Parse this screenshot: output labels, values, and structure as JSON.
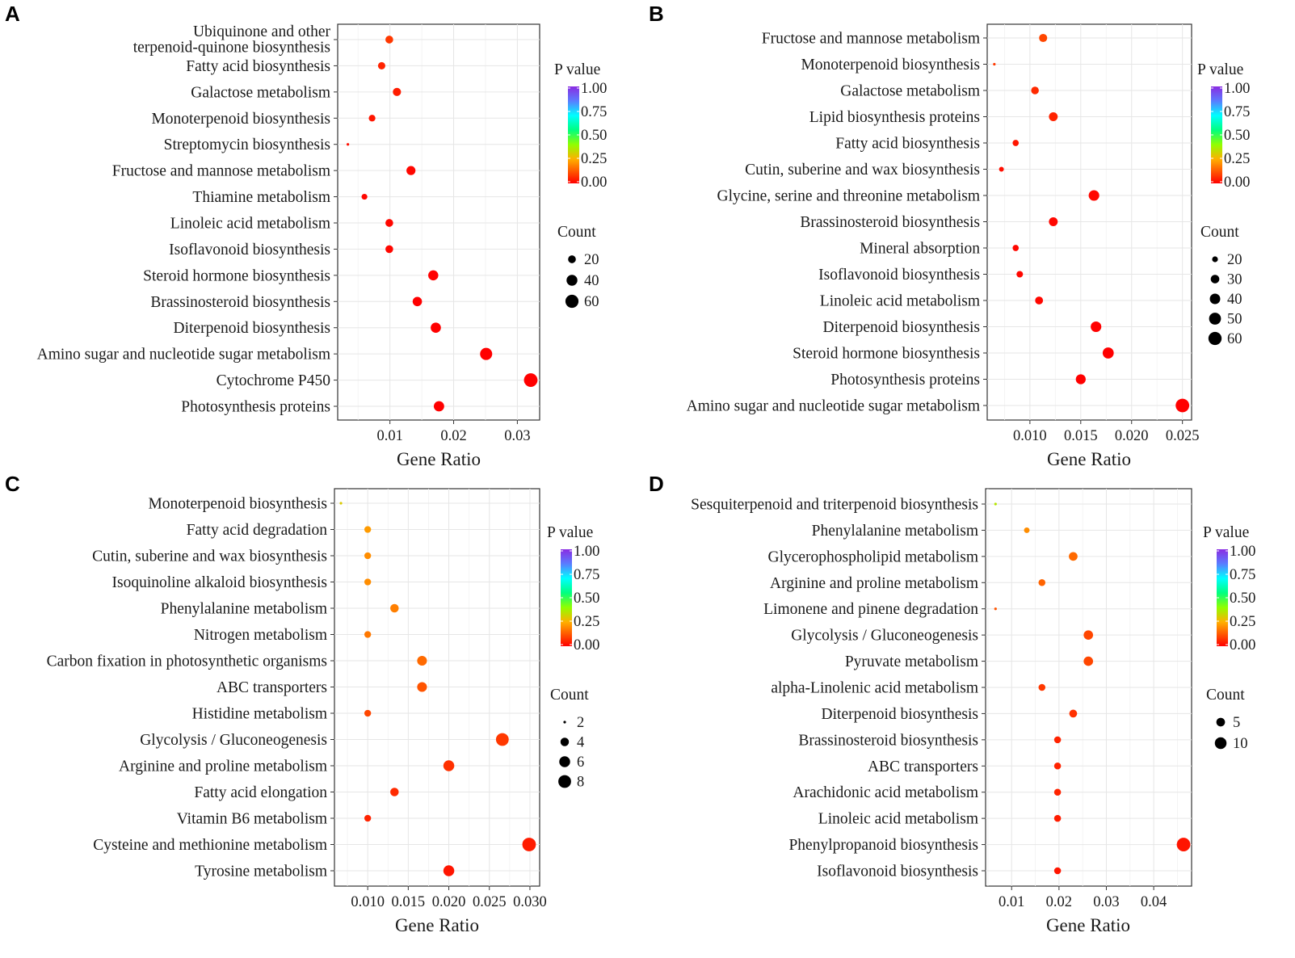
{
  "chart_data": [
    {
      "panel": "A",
      "type": "scatter",
      "xlabel": "Gene Ratio",
      "xticks": [
        0.01,
        0.02,
        0.03
      ],
      "xtick_labels": [
        "0.01",
        "0.02",
        "0.03"
      ],
      "xlim": [
        0.0018,
        0.0335
      ],
      "categories": [
        "Ubiquinone and other terpenoid-quinone biosynthesis",
        "Fatty acid biosynthesis",
        "Galactose metabolism",
        "Monoterpenoid biosynthesis",
        "Streptomycin biosynthesis",
        "Fructose and mannose metabolism",
        "Thiamine metabolism",
        "Linoleic acid metabolism",
        "Isoflavonoid biosynthesis",
        "Steroid hormone biosynthesis",
        "Brassinosteroid biosynthesis",
        "Diterpenoid biosynthesis",
        "Amino sugar and nucleotide sugar metabolism",
        "Cytochrome P450",
        "Photosynthesis proteins"
      ],
      "gene_ratio": [
        0.0099,
        0.0087,
        0.0111,
        0.0072,
        0.0034,
        0.0133,
        0.006,
        0.0099,
        0.0099,
        0.0168,
        0.0143,
        0.0172,
        0.0251,
        0.0321,
        0.0177
      ],
      "count": [
        20,
        18,
        22,
        15,
        7,
        27,
        12,
        20,
        20,
        34,
        29,
        35,
        51,
        65,
        36
      ],
      "p_value": [
        0.08,
        0.05,
        0.04,
        0.03,
        0.02,
        0.01,
        0.01,
        0.01,
        0.01,
        0.0,
        0.0,
        0.0,
        0.0,
        0.0,
        0.0
      ],
      "p_legend": {
        "title": "P value",
        "labels": [
          "1.00",
          "0.75",
          "0.50",
          "0.25",
          "0.00"
        ]
      },
      "count_legend": {
        "title": "Count",
        "labels": [
          "20",
          "40",
          "60"
        ],
        "values": [
          20,
          40,
          60
        ]
      },
      "count_range": [
        7,
        65
      ]
    },
    {
      "panel": "B",
      "type": "scatter",
      "xlabel": "Gene Ratio",
      "xticks": [
        0.01,
        0.015,
        0.02,
        0.025
      ],
      "xtick_labels": [
        "0.010",
        "0.015",
        "0.020",
        "0.025"
      ],
      "xlim": [
        0.0058,
        0.0259
      ],
      "categories": [
        "Fructose and mannose metabolism",
        "Monoterpenoid biosynthesis",
        "Galactose metabolism",
        "Lipid biosynthesis proteins",
        "Fatty acid biosynthesis",
        "Cutin, suberine and wax biosynthesis",
        "Glycine, serine and threonine metabolism",
        "Brassinosteroid biosynthesis",
        "Mineral absorption",
        "Isoflavonoid biosynthesis",
        "Linoleic acid metabolism",
        "Diterpenoid biosynthesis",
        "Steroid hormone biosynthesis",
        "Photosynthesis proteins",
        "Amino sugar and nucleotide sugar metabolism"
      ],
      "gene_ratio": [
        0.0113,
        0.0065,
        0.0105,
        0.0123,
        0.0086,
        0.0072,
        0.0163,
        0.0123,
        0.0086,
        0.009,
        0.0109,
        0.0165,
        0.0177,
        0.015,
        0.025
      ],
      "count": [
        28,
        16,
        26,
        31,
        21,
        18,
        41,
        31,
        21,
        22,
        27,
        41,
        44,
        37,
        63
      ],
      "p_value": [
        0.1,
        0.08,
        0.06,
        0.05,
        0.03,
        0.02,
        0.01,
        0.01,
        0.01,
        0.01,
        0.01,
        0.0,
        0.0,
        0.0,
        0.0
      ],
      "p_legend": {
        "title": "P value",
        "labels": [
          "1.00",
          "0.75",
          "0.50",
          "0.25",
          "0.00"
        ]
      },
      "count_legend": {
        "title": "Count",
        "labels": [
          "20",
          "30",
          "40",
          "50",
          "60"
        ],
        "values": [
          20,
          30,
          40,
          50,
          60
        ]
      },
      "count_range": [
        16,
        63
      ]
    },
    {
      "panel": "C",
      "type": "scatter",
      "xlabel": "Gene Ratio",
      "xticks": [
        0.01,
        0.015,
        0.02,
        0.025,
        0.03
      ],
      "xtick_labels": [
        "0.010",
        "0.015",
        "0.020",
        "0.025",
        "0.030"
      ],
      "xlim": [
        0.0059,
        0.0312
      ],
      "categories": [
        "Monoterpenoid biosynthesis",
        "Fatty acid degradation",
        "Cutin, suberine and wax biosynthesis",
        "Isoquinoline alkaloid biosynthesis",
        "Phenylalanine metabolism",
        "Nitrogen metabolism",
        "Carbon fixation in photosynthetic organisms",
        "ABC transporters",
        "Histidine metabolism",
        "Glycolysis / Gluconeogenesis",
        "Arginine and proline metabolism",
        "Fatty acid elongation",
        "Vitamin B6 metabolism",
        "Cysteine and methionine metabolism",
        "Tyrosine metabolism"
      ],
      "gene_ratio": [
        0.0067,
        0.01,
        0.01,
        0.01,
        0.0133,
        0.01,
        0.0167,
        0.0167,
        0.01,
        0.0266,
        0.02,
        0.0133,
        0.01,
        0.0299,
        0.02
      ],
      "count": [
        2,
        3,
        3,
        3,
        4,
        3,
        5,
        5,
        3,
        8,
        6,
        4,
        3,
        9,
        6
      ],
      "p_value": [
        0.3,
        0.22,
        0.2,
        0.2,
        0.18,
        0.17,
        0.15,
        0.12,
        0.1,
        0.08,
        0.07,
        0.06,
        0.05,
        0.04,
        0.03
      ],
      "p_legend": {
        "title": "P value",
        "labels": [
          "1.00",
          "0.75",
          "0.50",
          "0.25",
          "0.00"
        ]
      },
      "count_legend": {
        "title": "Count",
        "labels": [
          "2",
          "4",
          "6",
          "8"
        ],
        "values": [
          2,
          4,
          6,
          8
        ]
      },
      "count_range": [
        2,
        9
      ]
    },
    {
      "panel": "D",
      "type": "scatter",
      "xlabel": "Gene Ratio",
      "xticks": [
        0.01,
        0.02,
        0.03,
        0.04
      ],
      "xtick_labels": [
        "0.01",
        "0.02",
        "0.03",
        "0.04"
      ],
      "xlim": [
        0.0045,
        0.048
      ],
      "categories": [
        "Sesquiterpenoid and triterpenoid biosynthesis",
        "Phenylalanine metabolism",
        "Glycerophospholipid metabolism",
        "Arginine and proline metabolism",
        "Limonene and pinene degradation",
        "Glycolysis / Gluconeogenesis",
        "Pyruvate metabolism",
        "alpha-Linolenic acid metabolism",
        "Diterpenoid biosynthesis",
        "Brassinosteroid biosynthesis",
        "ABC transporters",
        "Arachidonic acid metabolism",
        "Linoleic acid metabolism",
        "Phenylpropanoid biosynthesis",
        "Isoflavonoid biosynthesis"
      ],
      "gene_ratio": [
        0.0066,
        0.0132,
        0.023,
        0.0164,
        0.0066,
        0.0262,
        0.0262,
        0.0164,
        0.023,
        0.0197,
        0.0197,
        0.0197,
        0.0197,
        0.0463,
        0.0197
      ],
      "count": [
        1,
        2,
        5,
        3,
        1,
        6,
        6,
        3,
        4,
        3,
        3,
        3,
        3,
        14,
        3
      ],
      "p_value": [
        0.35,
        0.2,
        0.15,
        0.14,
        0.12,
        0.1,
        0.1,
        0.08,
        0.07,
        0.05,
        0.05,
        0.05,
        0.04,
        0.03,
        0.03
      ],
      "p_legend": {
        "title": "P value",
        "labels": [
          "1.00",
          "0.75",
          "0.50",
          "0.25",
          "0.00"
        ]
      },
      "count_legend": {
        "title": "Count",
        "labels": [
          "5",
          "10"
        ],
        "values": [
          5,
          10
        ]
      },
      "count_range": [
        1,
        14
      ]
    }
  ]
}
